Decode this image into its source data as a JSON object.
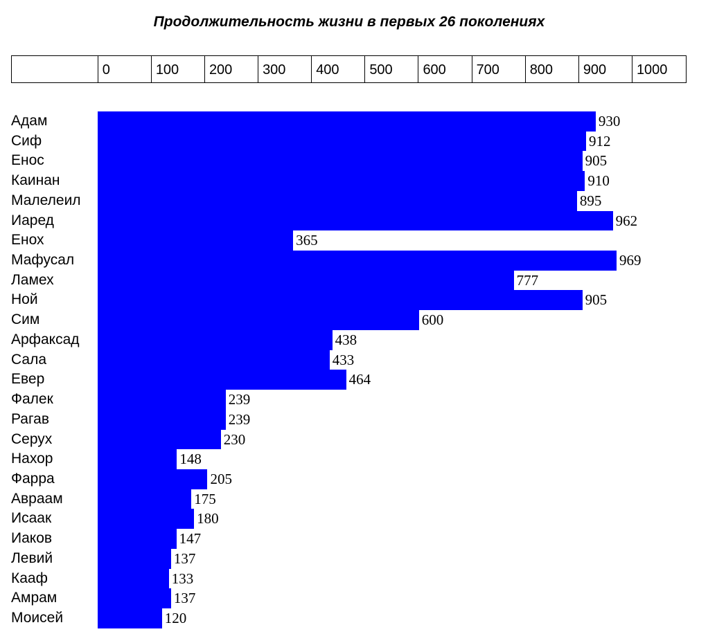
{
  "title": "Продолжительность жизни в первых 26 поколениях",
  "scale": {
    "ticks": [
      "0",
      "100",
      "200",
      "300",
      "400",
      "500",
      "600",
      "700",
      "800",
      "900",
      "1000"
    ]
  },
  "colors": {
    "bar": "#0000ff",
    "background": "#ffffff",
    "text": "#000000"
  },
  "chart_data": {
    "type": "bar",
    "orientation": "horizontal",
    "title": "Продолжительность жизни в первых 26 поколениях",
    "xlabel": "",
    "ylabel": "",
    "xlim": [
      0,
      1000
    ],
    "x_ticks": [
      0,
      100,
      200,
      300,
      400,
      500,
      600,
      700,
      800,
      900,
      1000
    ],
    "grid": false,
    "legend": null,
    "categories": [
      "Адам",
      "Сиф",
      "Енос",
      "Каинан",
      "Малелеил",
      "Иаред",
      "Енох",
      "Мафусал",
      "Ламех",
      "Ной",
      "Сим",
      "Арфаксад",
      "Сала",
      "Евер",
      "Фалек",
      "Рагав",
      "Серух",
      "Нахор",
      "Фарра",
      "Авраам",
      "Исаак",
      "Иаков",
      "Левий",
      "Кааф",
      "Амрам",
      "Моисей"
    ],
    "values": [
      930,
      912,
      905,
      910,
      895,
      962,
      365,
      969,
      777,
      905,
      600,
      438,
      433,
      464,
      239,
      239,
      230,
      148,
      205,
      175,
      180,
      147,
      137,
      133,
      137,
      120
    ]
  }
}
